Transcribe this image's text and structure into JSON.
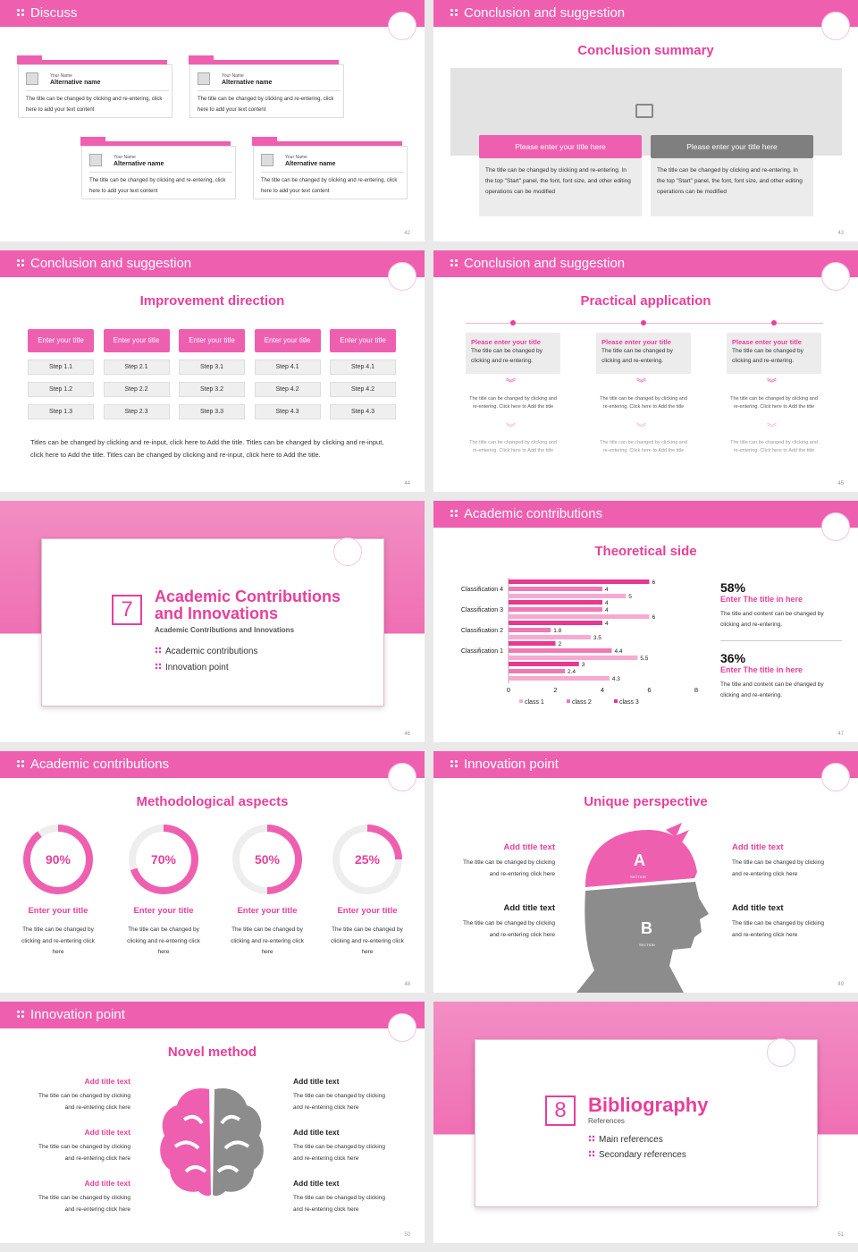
{
  "s42": {
    "title": "Discuss",
    "page": "42",
    "card_top": "Your Name",
    "card_name": "Alternative name",
    "card_text": "The title can be changed by clicking and re-entering, click here to add your text content"
  },
  "s43": {
    "title": "Conclusion and suggestion",
    "sub": "Conclusion summary",
    "btn1": "Please enter your title here",
    "btn2": "Please enter your title here",
    "text": "The title can be changed by clicking and re-entering. In the top \"Start\" panel, the font, font size, and other editing operations can be modified",
    "page": "43"
  },
  "s44": {
    "title": "Conclusion and suggestion",
    "sub": "Improvement direction",
    "head": "Enter your title",
    "steps": [
      [
        "Step 1.1",
        "Step 1.2",
        "Step 1.3"
      ],
      [
        "Step 2.1",
        "Step 2.2",
        "Step 2.3"
      ],
      [
        "Step 3.1",
        "Step 3.2",
        "Step 3.3"
      ],
      [
        "Step 4.1",
        "Step 4.2",
        "Step 4.3"
      ],
      [
        "Step 4.1",
        "Step 4.2",
        "Step 4.3"
      ]
    ],
    "text": "Titles can be changed by clicking and re-input, click here to Add the title. Titles can be changed by clicking and re-input, click here to Add the title. Titles can be changed by clicking and re-input, click here to Add the title.",
    "page": "44"
  },
  "s45": {
    "title": "Conclusion and suggestion",
    "sub": "Practical application",
    "box_title": "Please enter your title",
    "box_text": "The title can be changed by clicking and re-entering.",
    "t1": "The title can be changed by clicking and re-entering. Click here to Add the title",
    "t2": "The title can be changed by clicking and re-entering. Click here to Add the title",
    "page": "45"
  },
  "s46": {
    "num": "7",
    "t1": "Academic Contributions",
    "t2": "and Innovations",
    "sub": "Academic Contributions and Innovations",
    "i1": "Academic contributions",
    "i2": "Innovation point",
    "page": "46"
  },
  "s47": {
    "title": "Academic contributions",
    "sub": "Theoretical side",
    "pct1": "58%",
    "h1": "Enter The title in here",
    "tx1": "The title and content can be changed by clicking and re-entering.",
    "pct2": "36%",
    "h2": "Enter The title in here",
    "tx2": "The title and content can be changed by clicking and re-entering.",
    "page": "47"
  },
  "chart_data": {
    "type": "bar",
    "orientation": "horizontal",
    "categories": [
      "Classification 4",
      "Classification 3",
      "Classification 2",
      "Classification 1",
      ""
    ],
    "series": [
      {
        "name": "class 3",
        "values": [
          6,
          4,
          4,
          2,
          3
        ]
      },
      {
        "name": "class 2",
        "values": [
          4,
          4,
          1.8,
          4.4,
          2.4
        ]
      },
      {
        "name": "class 1",
        "values": [
          5,
          6,
          3.5,
          5.5,
          4.3
        ]
      }
    ],
    "xticks": [
      "0",
      "2",
      "4",
      "6",
      "8"
    ],
    "xlim": [
      0,
      8
    ],
    "colors": [
      "#e8388f",
      "#f079b5",
      "#f6aad1"
    ],
    "legend": "bottom"
  },
  "s48": {
    "title": "Academic contributions",
    "sub": "Methodological aspects",
    "rings": [
      {
        "v": "90%",
        "p": 90
      },
      {
        "v": "70%",
        "p": 70
      },
      {
        "v": "50%",
        "p": 50
      },
      {
        "v": "25%",
        "p": 25
      }
    ],
    "h": "Enter your title",
    "tx": "The title can be changed by clicking and re-entering click here",
    "page": "48"
  },
  "s49": {
    "title": "Innovation point",
    "sub": "Unique perspective",
    "a": "A",
    "b": "B",
    "sec": "SECTION",
    "h_pink": "Add title text",
    "h_dark": "Add title text",
    "tx": "The title can be changed by clicking and re-entering click here",
    "page": "49"
  },
  "s50": {
    "title": "Innovation point",
    "sub": "Novel method",
    "h": "Add title text",
    "tx": "The title can be changed by clicking and re-entering click here",
    "page": "50"
  },
  "s51": {
    "num": "8",
    "t1": "Bibliography",
    "sub": "References",
    "i1": "Main references",
    "i2": "Secondary references",
    "page": "51"
  }
}
